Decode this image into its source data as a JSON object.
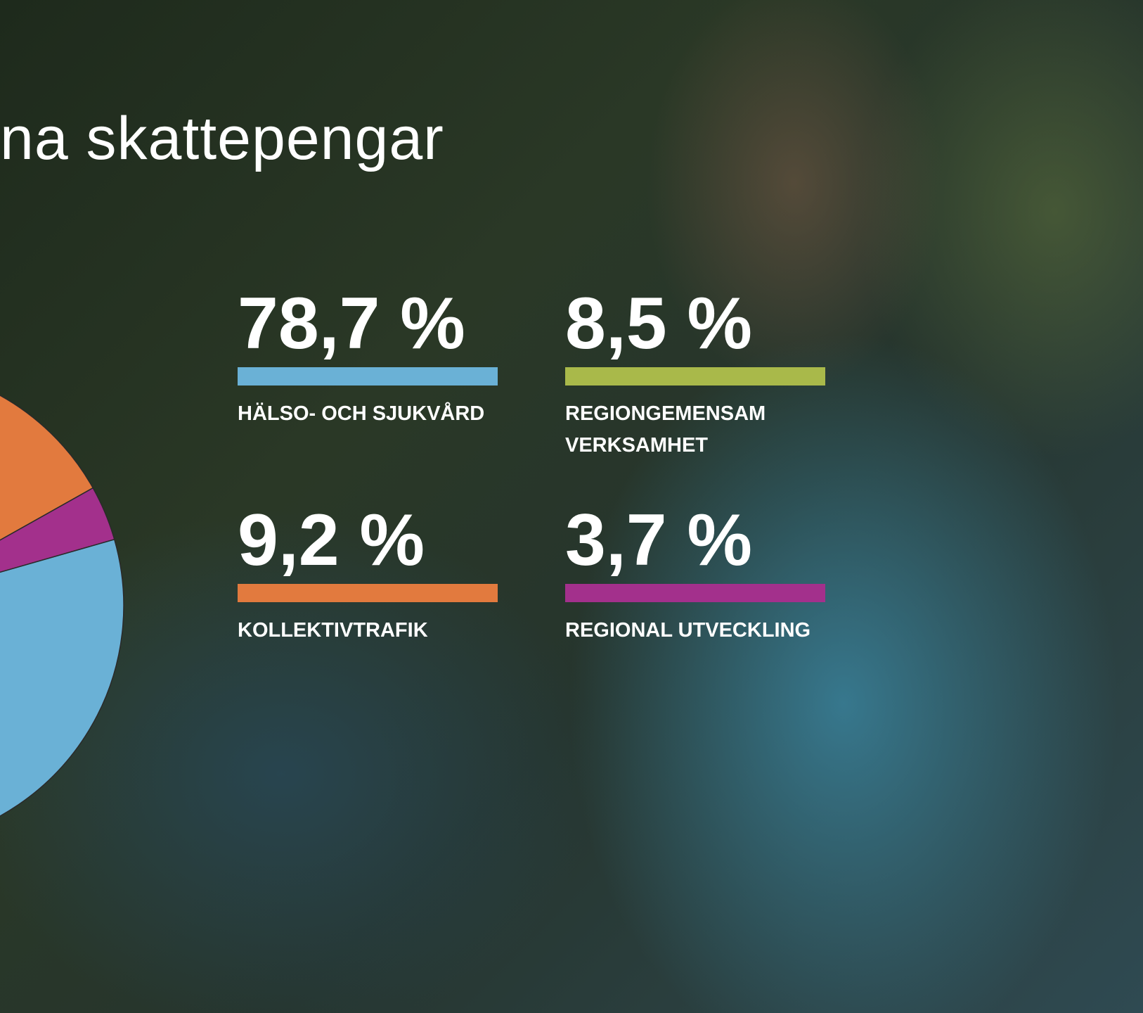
{
  "chart_data": {
    "type": "pie",
    "title": "na skattepengar",
    "categories": [
      "HÄLSO- OCH SJUKVÅRD",
      "REGIONGEMENSAM VERKSAMHET",
      "KOLLEKTIVTRAFIK",
      "REGIONAL UTVECKLING"
    ],
    "values": [
      78.7,
      8.5,
      9.2,
      3.7
    ],
    "value_labels": [
      "78,7 %",
      "8,5 %",
      "9,2 %",
      "3,7 %"
    ],
    "colors": [
      "#6ab1d6",
      "#a9b94a",
      "#e27a3e",
      "#a3308c"
    ]
  }
}
